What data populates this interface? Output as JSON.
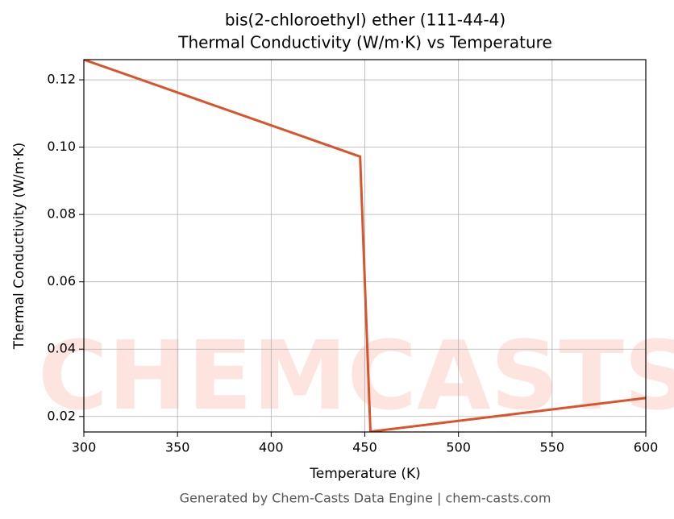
{
  "chart_data": {
    "type": "line",
    "title": "bis(2-chloroethyl) ether (111-44-4)",
    "subtitle": "Thermal Conductivity (W/m·K) vs Temperature",
    "x_label": "Temperature (K)",
    "y_label": "Thermal Conductivity (W/m·K)",
    "watermark": "CHEMCASTS",
    "footer": "Generated by Chem-Casts Data Engine | chem-casts.com",
    "x": [
      300,
      447.5,
      453,
      600
    ],
    "series": [
      {
        "name": "Thermal Conductivity",
        "color": "#d9532b",
        "values": [
          0.126,
          0.0972,
          0.0155,
          0.0255
        ]
      }
    ],
    "xlim": [
      300,
      600
    ],
    "xticks": [
      300,
      350,
      400,
      450,
      500,
      550,
      600
    ],
    "ylim": [
      0.0154,
      0.126
    ],
    "yticks": [
      0.02,
      0.04,
      0.06,
      0.08,
      {
        "value": 0.1,
        "label": "0.10"
      },
      0.12
    ],
    "grid": true
  }
}
